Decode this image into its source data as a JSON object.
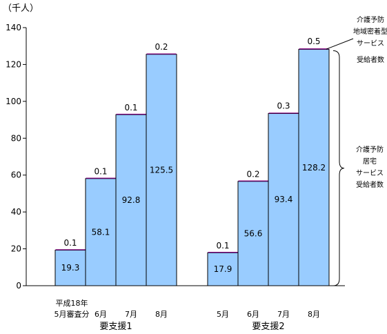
{
  "chart_data": {
    "type": "bar",
    "unit_label": "（千人）",
    "ylim": [
      0,
      140
    ],
    "yticks": [
      0,
      20,
      40,
      60,
      80,
      100,
      120,
      140
    ],
    "groups": [
      {
        "label": "要支援1",
        "bars": [
          {
            "label_lines": [
              "平成18年",
              "5月審査分"
            ],
            "home": 19.3,
            "community": 0.1
          },
          {
            "label_lines": [
              "6月"
            ],
            "home": 58.1,
            "community": 0.1
          },
          {
            "label_lines": [
              "7月"
            ],
            "home": 92.8,
            "community": 0.1
          },
          {
            "label_lines": [
              "8月"
            ],
            "home": 125.5,
            "community": 0.2
          }
        ]
      },
      {
        "label": "要支援2",
        "bars": [
          {
            "label_lines": [
              "5月"
            ],
            "home": 17.9,
            "community": 0.1
          },
          {
            "label_lines": [
              "6月"
            ],
            "home": 56.6,
            "community": 0.2
          },
          {
            "label_lines": [
              "7月"
            ],
            "home": 93.4,
            "community": 0.3
          },
          {
            "label_lines": [
              "8月"
            ],
            "home": 128.2,
            "community": 0.5
          }
        ]
      }
    ],
    "annotations": {
      "community": [
        "介護予防",
        "地域密着型",
        "サービス",
        "受給者数"
      ],
      "home": [
        "介護予防",
        "居宅",
        "サービス",
        "受給者数"
      ]
    },
    "colors": {
      "home_fill": "#99CCFF",
      "community_fill": "#800080",
      "bar_stroke": "#000000"
    }
  }
}
